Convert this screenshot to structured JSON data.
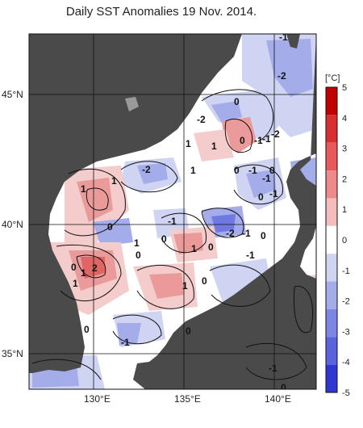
{
  "title": "Daily SST Anomalies 19 Nov. 2014.",
  "colors": {
    "land": "#4a4a4a",
    "sea_zero": "#ffffff",
    "pos1": "#f4cccc",
    "pos2": "#eb9a9a",
    "pos3": "#e06666",
    "neg1": "#cfd4f2",
    "neg2": "#a4acea",
    "neg3": "#6f79e0",
    "grid": "#111111"
  },
  "axes": {
    "lon_ticks": [
      "130°E",
      "135°E",
      "140°E"
    ],
    "lat_ticks": [
      "45°N",
      "40°N",
      "35°N"
    ]
  },
  "colorbar": {
    "unit": "[°C]",
    "ticks": [
      "5",
      "4",
      "3",
      "2",
      "1",
      "0",
      "-1",
      "-2",
      "-3",
      "-4",
      "-5"
    ],
    "colors": [
      "#c00000",
      "#d83030",
      "#e65a5a",
      "#ee8a8a",
      "#f4bcbc",
      "#ffffff",
      "#cfd4f2",
      "#a4acea",
      "#7d87e3",
      "#5a63dc",
      "#2f37d0"
    ]
  },
  "contour_labels": [
    "-1",
    "-2",
    "-2",
    "-1",
    "0",
    "1",
    "0",
    "-1",
    "-2",
    "1",
    "1",
    "-2",
    "1",
    "0",
    "-1",
    "-1",
    "0",
    "1",
    "0",
    "-1",
    "0",
    "1",
    "-1",
    "-2",
    "-1",
    "0",
    "0",
    "1",
    "0",
    "0",
    "-1",
    "0",
    "1",
    "2",
    "0",
    "1",
    "1",
    "0",
    "0",
    "-1",
    "0",
    "-1"
  ]
}
